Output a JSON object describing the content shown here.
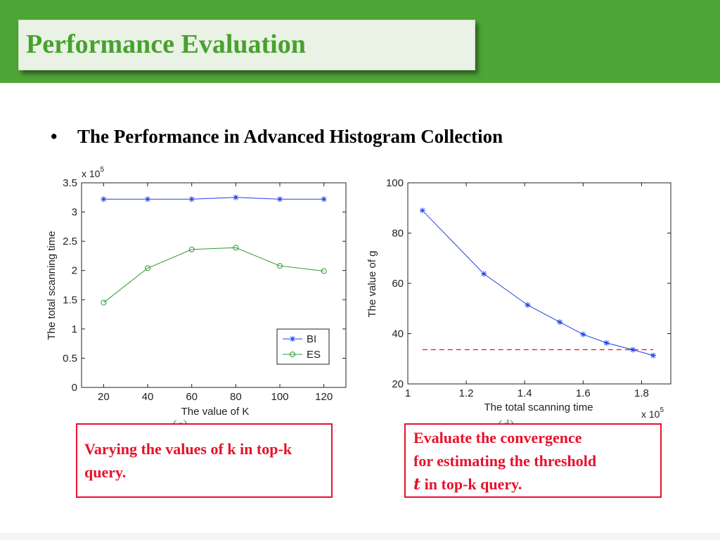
{
  "header": {
    "title": "Performance Evaluation"
  },
  "bullet": {
    "symbol": "•",
    "text": "The Performance in Advanced Histogram Collection"
  },
  "chart_data": [
    {
      "id": "c",
      "type": "line",
      "caption": "(c)",
      "xlabel": "The value of K",
      "ylabel": "The total scanning time",
      "y_multiplier": "x 10",
      "y_multiplier_exp": "5",
      "xlim": [
        10,
        130
      ],
      "ylim": [
        0,
        3.5
      ],
      "xticks": [
        20,
        40,
        60,
        80,
        100,
        120
      ],
      "xtick_labels": [
        "20",
        "40",
        "60",
        "80",
        "100",
        "120"
      ],
      "yticks": [
        0,
        0.5,
        1,
        1.5,
        2,
        2.5,
        3,
        3.5
      ],
      "ytick_labels": [
        "0",
        "0.5",
        "1",
        "1.5",
        "2",
        "2.5",
        "3",
        "3.5"
      ],
      "grid": false,
      "legend": "bottom-right",
      "series": [
        {
          "name": "BI",
          "marker": "star",
          "color": "#1f3fe6",
          "x": [
            20,
            40,
            60,
            80,
            100,
            120
          ],
          "y": [
            3.22,
            3.22,
            3.22,
            3.25,
            3.22,
            3.22
          ]
        },
        {
          "name": "ES",
          "marker": "circle",
          "color": "#2e9a2e",
          "x": [
            20,
            40,
            60,
            80,
            100,
            120
          ],
          "y": [
            1.45,
            2.04,
            2.36,
            2.39,
            2.08,
            1.99
          ]
        }
      ]
    },
    {
      "id": "d",
      "type": "line",
      "caption": "(d)",
      "xlabel": "The total scanning time",
      "ylabel": "The value of g",
      "x_multiplier": "x 10",
      "x_multiplier_exp": "5",
      "xlim": [
        1,
        1.9
      ],
      "ylim": [
        20,
        100
      ],
      "xticks": [
        1,
        1.2,
        1.4,
        1.6,
        1.8
      ],
      "xtick_labels": [
        "1",
        "1.2",
        "1.4",
        "1.6",
        "1.8"
      ],
      "yticks": [
        20,
        40,
        60,
        80,
        100
      ],
      "ytick_labels": [
        "20",
        "40",
        "60",
        "80",
        "100"
      ],
      "grid": false,
      "series": [
        {
          "marker": "star",
          "color": "#1f3fe6",
          "x": [
            1.05,
            1.26,
            1.41,
            1.52,
            1.6,
            1.68,
            1.77,
            1.84
          ],
          "y": [
            89,
            63.8,
            51.4,
            44.6,
            39.7,
            36.3,
            33.6,
            31.3
          ]
        }
      ],
      "threshold": {
        "y": 33.6,
        "x_range": [
          1.05,
          1.84
        ],
        "color": "#e8112a",
        "style": "dashed"
      }
    }
  ],
  "notes": [
    {
      "text": "Varying the values of k in top-k query."
    },
    {
      "line1": "Evaluate the convergence",
      "line2": "for estimating the threshold",
      "symbol": "t",
      "line3_rest": " in top-k query."
    }
  ],
  "colors": {
    "accent_green": "#4ea637",
    "title_green": "#46a22f",
    "note_red": "#e8112a"
  }
}
